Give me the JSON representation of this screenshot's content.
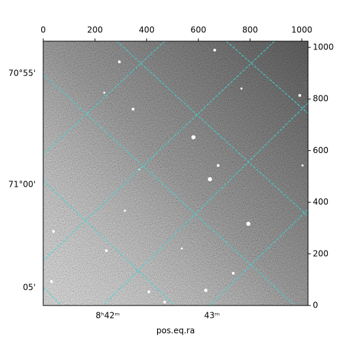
{
  "chart_data": {
    "type": "image",
    "xlabel": "pos.eq.ra",
    "xlim": [
      0,
      1024
    ],
    "ylim": [
      0,
      1024
    ],
    "xticks": [
      0,
      200,
      400,
      600,
      800,
      1000
    ],
    "yticks": [
      0,
      200,
      400,
      600,
      800,
      1000
    ],
    "ra_tick_labels": [
      "8ʰ42ᵐ",
      "43ᵐ"
    ],
    "dec_tick_labels": [
      "70°55'",
      "71°00'",
      "05'"
    ]
  }
}
